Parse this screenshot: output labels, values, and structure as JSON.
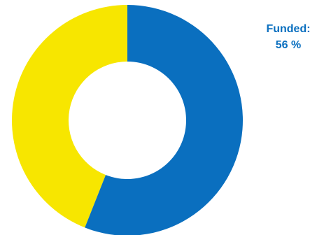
{
  "chart_data": {
    "type": "donut",
    "categories": [
      "Funded:",
      null
    ],
    "values": [
      56,
      44
    ],
    "value_labels": [
      "56 %",
      null
    ],
    "colors": [
      "#0a6fbf",
      "#f7e600"
    ]
  }
}
